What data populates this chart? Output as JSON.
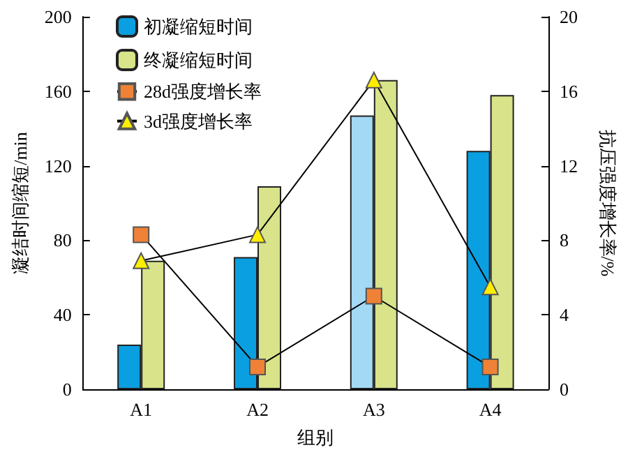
{
  "chart_data": {
    "type": "bar",
    "xlabel": "组别",
    "ylabel": "凝结时间缩短/min",
    "y2label": "抗压强度增长率/%",
    "categories": [
      "A1",
      "A2",
      "A3",
      "A4"
    ],
    "series": [
      {
        "name": "初凝缩短时间",
        "color": "#0a9fe0",
        "colors": [
          "#0a9fe0",
          "#0a9fe0",
          "#a3d9f5",
          "#0a9fe0"
        ],
        "values": [
          24,
          71,
          147,
          128
        ]
      },
      {
        "name": "终凝缩短时间",
        "color": "#d8e38a",
        "values": [
          69,
          109,
          166,
          158
        ]
      },
      {
        "name": "28d强度增长率",
        "type": "line",
        "axis": "y2",
        "marker": "square",
        "color": "#ef8236",
        "values": [
          8.3,
          1.2,
          5.0,
          1.2
        ]
      },
      {
        "name": "3d强度增长率",
        "type": "line",
        "axis": "y2",
        "marker": "triangle",
        "color": "#ffee00",
        "values": [
          6.9,
          8.3,
          16.6,
          5.5
        ]
      }
    ],
    "ylim": [
      0,
      200
    ],
    "yticks": [
      0,
      40,
      80,
      120,
      160,
      200
    ],
    "y2lim": [
      0,
      20
    ],
    "y2ticks": [
      0,
      4,
      8,
      12,
      16,
      20
    ],
    "legend": "top left",
    "grid": false
  }
}
